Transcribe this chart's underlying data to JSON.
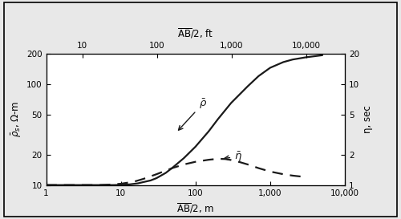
{
  "title_top": "$\\overline{\\mathrm{AB}}$/2, ft",
  "xlabel": "$\\overline{\\mathrm{AB}}$/2, m",
  "ylabel_left": "$\\bar{\\rho}_s$, Ω-m",
  "ylabel_right": "η, sec",
  "xlim_m": [
    1,
    10000
  ],
  "ylim_left": [
    10,
    200
  ],
  "ylim_right": [
    1,
    20
  ],
  "feet_per_meter": 3.28084,
  "rho_x": [
    1,
    2,
    3,
    4,
    5,
    6,
    7,
    8,
    10,
    13,
    17,
    20,
    25,
    30,
    40,
    50,
    70,
    100,
    150,
    200,
    300,
    500,
    700,
    1000,
    1500,
    2000,
    3000,
    5000
  ],
  "rho_y": [
    10,
    10,
    10,
    10,
    10,
    10,
    10,
    10,
    10.05,
    10.15,
    10.4,
    10.7,
    11.1,
    11.7,
    13.2,
    15.0,
    18.5,
    24,
    34,
    45,
    65,
    95,
    120,
    145,
    165,
    175,
    184,
    193
  ],
  "eta_x": [
    1,
    3,
    5,
    7,
    10,
    15,
    20,
    30,
    50,
    70,
    100,
    150,
    200,
    250,
    300,
    400,
    500,
    700,
    1000,
    1500,
    2000,
    3000
  ],
  "eta_y": [
    1.0,
    1.0,
    1.0,
    1.01,
    1.03,
    1.08,
    1.15,
    1.28,
    1.48,
    1.6,
    1.7,
    1.78,
    1.82,
    1.81,
    1.77,
    1.68,
    1.6,
    1.47,
    1.36,
    1.28,
    1.24,
    1.2
  ],
  "rho_label": "$\\bar{\\rho}$",
  "eta_label": "$\\bar{\\eta}$",
  "line_color": "#1a1a1a",
  "outer_bg": "#e8e8e8",
  "plot_bg": "#ffffff",
  "yticks_left": [
    10,
    20,
    50,
    100,
    200
  ],
  "yticks_right": [
    1,
    2,
    5,
    10,
    20
  ],
  "xticks_bot": [
    1,
    10,
    100,
    1000,
    10000
  ],
  "xticks_bot_labels": [
    "1",
    "10",
    "100",
    "1,000",
    "10,000"
  ],
  "xticks_top": [
    10,
    100,
    1000,
    10000
  ],
  "xticks_top_labels": [
    "10",
    "100",
    "1,000",
    "10,000"
  ]
}
